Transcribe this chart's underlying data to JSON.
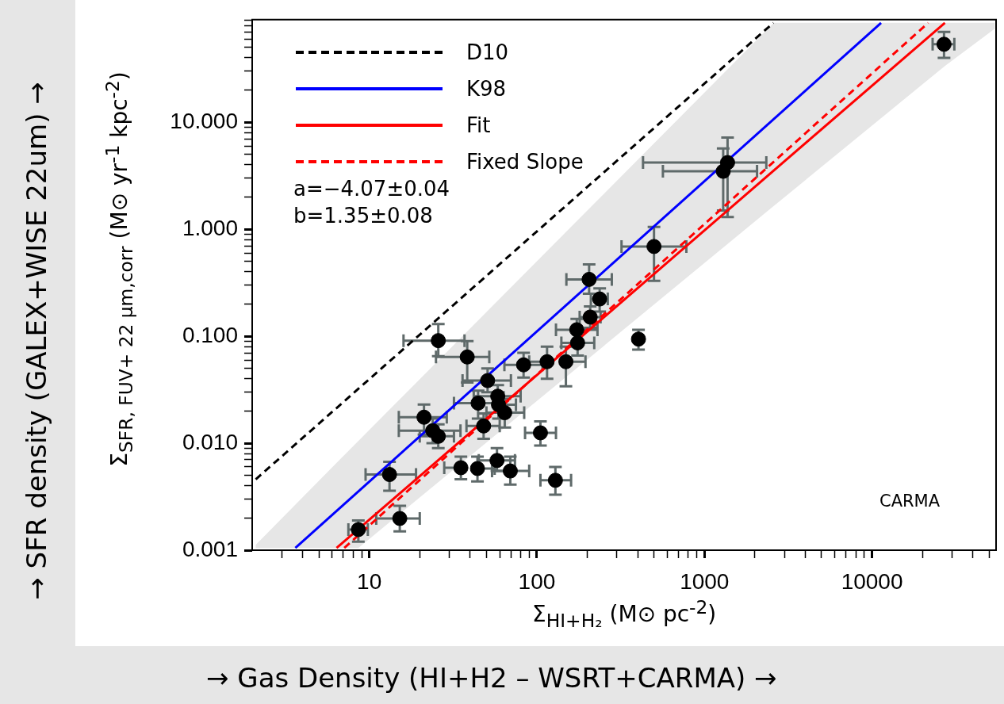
{
  "chart_data": {
    "type": "scatter",
    "xlabel": "Σ$_{HI+H₂}$ (M⊙ pc$^{-2}$)",
    "ylabel": "Σ$_{SFR, FUV+ 22 μm,corr}$ (M⊙ yr$^{-1}$ kpc$^{-2}$)",
    "annotations": [
      "a=−4.07±0.04",
      "b=1.35±0.08",
      "CARMA",
      "→ SFR density (GALEX+WISE 22um) →",
      "→ Gas Density (HI+H2 – WSRT+CARMA) →"
    ],
    "log": "xy",
    "grid": false,
    "legend": "top left",
    "marker": "circle",
    "xlim": [
      2,
      55000
    ],
    "ylim": [
      0.001,
      91
    ],
    "xticks": [
      {
        "value": 3,
        "label": null
      },
      {
        "value": 4,
        "label": null
      },
      {
        "value": 5,
        "label": null
      },
      {
        "value": 6,
        "label": null
      },
      {
        "value": 7,
        "label": null
      },
      {
        "value": 8,
        "label": null
      },
      {
        "value": 9,
        "label": null
      },
      10,
      {
        "value": 20,
        "label": null
      },
      {
        "value": 30,
        "label": null
      },
      {
        "value": 40,
        "label": null
      },
      {
        "value": 50,
        "label": null
      },
      {
        "value": 60,
        "label": null
      },
      {
        "value": 70,
        "label": null
      },
      {
        "value": 80,
        "label": null
      },
      {
        "value": 90,
        "label": null
      },
      100,
      {
        "value": 200,
        "label": null
      },
      {
        "value": 300,
        "label": null
      },
      {
        "value": 400,
        "label": null
      },
      {
        "value": 500,
        "label": null
      },
      {
        "value": 600,
        "label": null
      },
      {
        "value": 700,
        "label": null
      },
      {
        "value": 800,
        "label": null
      },
      {
        "value": 900,
        "label": null
      },
      1000,
      {
        "value": 2000,
        "label": null
      },
      {
        "value": 3000,
        "label": null
      },
      {
        "value": 4000,
        "label": null
      },
      {
        "value": 5000,
        "label": null
      },
      {
        "value": 6000,
        "label": null
      },
      {
        "value": 7000,
        "label": null
      },
      {
        "value": 8000,
        "label": null
      },
      {
        "value": 9000,
        "label": null
      },
      10000,
      {
        "value": 20000,
        "label": null
      },
      {
        "value": 30000,
        "label": null
      },
      {
        "value": 40000,
        "label": null
      },
      {
        "value": 50000,
        "label": null
      }
    ],
    "yticks": [
      {
        "value": 0.001,
        "label": "0.001"
      },
      {
        "value": 0.002,
        "label": null
      },
      {
        "value": 0.003,
        "label": null
      },
      {
        "value": 0.004,
        "label": null
      },
      {
        "value": 0.005,
        "label": null
      },
      {
        "value": 0.006,
        "label": null
      },
      {
        "value": 0.007,
        "label": null
      },
      {
        "value": 0.008,
        "label": null
      },
      {
        "value": 0.009,
        "label": null
      },
      {
        "value": 0.01,
        "label": "0.010"
      },
      {
        "value": 0.02,
        "label": null
      },
      {
        "value": 0.03,
        "label": null
      },
      {
        "value": 0.04,
        "label": null
      },
      {
        "value": 0.05,
        "label": null
      },
      {
        "value": 0.06,
        "label": null
      },
      {
        "value": 0.07,
        "label": null
      },
      {
        "value": 0.08,
        "label": null
      },
      {
        "value": 0.09,
        "label": null
      },
      {
        "value": 0.1,
        "label": "0.100"
      },
      {
        "value": 0.2,
        "label": null
      },
      {
        "value": 0.3,
        "label": null
      },
      {
        "value": 0.4,
        "label": null
      },
      {
        "value": 0.5,
        "label": null
      },
      {
        "value": 0.6,
        "label": null
      },
      {
        "value": 0.7,
        "label": null
      },
      {
        "value": 0.8,
        "label": null
      },
      {
        "value": 0.9,
        "label": null
      },
      {
        "value": 1,
        "label": "1.000"
      },
      {
        "value": 2,
        "label": null
      },
      {
        "value": 3,
        "label": null
      },
      {
        "value": 4,
        "label": null
      },
      {
        "value": 5,
        "label": null
      },
      {
        "value": 6,
        "label": null
      },
      {
        "value": 7,
        "label": null
      },
      {
        "value": 8,
        "label": null
      },
      {
        "value": 9,
        "label": null
      },
      {
        "value": 10,
        "label": "10.000"
      },
      {
        "value": 20,
        "label": null
      },
      {
        "value": 30,
        "label": null
      },
      {
        "value": 40,
        "label": null
      },
      {
        "value": 50,
        "label": null
      },
      {
        "value": 60,
        "label": null
      },
      {
        "value": 70,
        "label": null
      },
      {
        "value": 80,
        "label": null
      },
      {
        "value": 90,
        "label": null
      }
    ],
    "series": [
      {
        "type": "line",
        "color": "#e6e6e6",
        "x": [
          2.1,
          6.4,
          8.6,
          2593,
          27220,
          54000
        ],
        "values": [
          null,
          null,
          null,
          null,
          null,
          null
        ],
        "upper": [
          0.00112,
          0.0066,
          0.0105,
          85,
          85,
          85
        ],
        "lower": [
          0.00105,
          0.00105,
          0.00105,
          1.65,
          33.6,
          75
        ]
      },
      {
        "name": "D10",
        "type": "line",
        "color": "#000000",
        "line_style": "dashed",
        "marker": "none",
        "x": [
          2.1,
          2580
        ],
        "values": [
          0.0046,
          85
        ]
      },
      {
        "name": "K98",
        "type": "line",
        "color": "#0000ff",
        "line_style": "solid",
        "marker": "none",
        "x": [
          3.62,
          11330
        ],
        "values": [
          0.00105,
          85
        ]
      },
      {
        "name": "Fit",
        "type": "line",
        "color": "#ff0000",
        "line_style": "solid",
        "marker": "none",
        "x": [
          6.38,
          27220
        ],
        "values": [
          0.00105,
          85
        ]
      },
      {
        "name": "Fixed Slope",
        "type": "line",
        "color": "#ff0000",
        "line_style": "dashed",
        "marker": "none",
        "x": [
          7.09,
          21660
        ],
        "values": [
          0.00105,
          85
        ]
      },
      {
        "color": "#000000",
        "x": [
          25.8,
          38.4,
          21.2,
          23.9,
          25.8,
          13.2,
          8.6,
          15.2,
          35.2,
          44.2,
          57.8,
          69.4,
          129,
          105,
          48.1,
          44.6,
          50.8,
          58.4,
          59,
          64.3,
          83.3,
          115,
          149,
          175,
          173,
          208,
          205,
          237,
          500,
          1374,
          1294,
          26900,
          404
        ],
        "values": [
          0.091,
          0.064,
          0.0175,
          0.0131,
          0.0116,
          0.0051,
          0.00156,
          0.00198,
          0.0059,
          0.0058,
          0.0069,
          0.0055,
          0.0045,
          0.0125,
          0.0145,
          0.0237,
          0.0385,
          0.0275,
          0.0229,
          0.0193,
          0.054,
          0.0578,
          0.0578,
          0.0867,
          0.115,
          0.151,
          0.34,
          0.223,
          0.69,
          4.2,
          3.48,
          53.6,
          0.094
        ],
        "errors": [
          [
            0.065,
            0.13
          ],
          [
            0.037,
            0.09
          ],
          [
            0.012,
            0.023
          ],
          [
            0.01,
            0.017
          ],
          [
            0.009,
            0.015
          ],
          [
            0.0036,
            0.0067
          ],
          [
            0.0012,
            0.0019
          ],
          [
            0.0015,
            0.0026
          ],
          [
            0.0046,
            0.0075
          ],
          [
            0.0044,
            0.0075
          ],
          [
            0.0055,
            0.009
          ],
          [
            0.0041,
            0.0075
          ],
          [
            0.0033,
            0.006
          ],
          [
            0.0095,
            0.016
          ],
          [
            0.011,
            0.019
          ],
          [
            0.017,
            0.031
          ],
          [
            0.03,
            0.05
          ],
          [
            0.0275,
            0.035
          ],
          [
            0.017,
            0.03
          ],
          [
            0.014,
            0.026
          ],
          [
            0.041,
            0.07
          ],
          [
            0.04,
            0.08
          ],
          [
            0.034,
            0.08
          ],
          [
            0.066,
            0.0867
          ],
          [
            0.115,
            0.145
          ],
          [
            0.12,
            0.19
          ],
          [
            0.25,
            0.47
          ],
          [
            0.17,
            0.28
          ],
          [
            0.33,
            1.05
          ],
          [
            1.3,
            7.2
          ],
          [
            1.5,
            5.7
          ],
          [
            40,
            70
          ],
          [
            0.075,
            0.115
          ]
        ],
        "xerrors": [
          [
            16,
            37
          ],
          [
            25,
            52
          ],
          [
            15,
            29
          ],
          [
            15,
            35
          ],
          [
            20,
            32
          ],
          [
            9.5,
            19
          ],
          [
            7.5,
            9.8
          ],
          [
            11,
            20
          ],
          [
            28,
            35.2
          ],
          [
            44.2,
            56
          ],
          [
            45,
            74
          ],
          [
            54,
            90
          ],
          [
            105,
            160
          ],
          [
            85,
            130
          ],
          [
            38,
            60
          ],
          [
            32,
            62
          ],
          [
            36,
            70
          ],
          [
            42,
            80
          ],
          [
            59,
            75
          ],
          [
            50,
            84
          ],
          [
            64,
            108
          ],
          [
            90,
            115
          ],
          [
            149,
            195
          ],
          [
            140,
            220
          ],
          [
            130,
            230
          ],
          [
            180,
            240
          ],
          [
            150,
            280
          ],
          [
            210,
            265
          ],
          [
            320,
            780
          ],
          [
            430,
            2340
          ],
          [
            565,
            2060
          ],
          [
            23000,
            31000
          ],
          null
        ]
      }
    ]
  }
}
